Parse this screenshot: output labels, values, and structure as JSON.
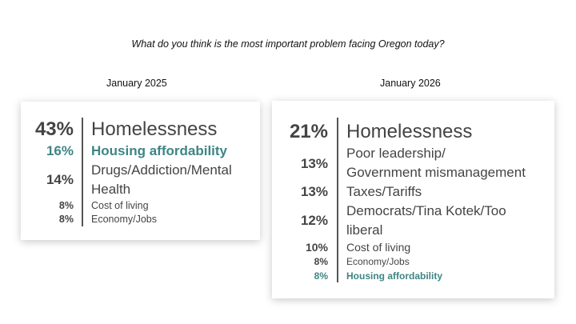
{
  "question": "What do you think is the most important problem facing Oregon today?",
  "panels": [
    {
      "heading": "January 2025",
      "rows": [
        {
          "pct": "43%",
          "label": "Homelessness"
        },
        {
          "pct": "16%",
          "label": "Housing affordability",
          "highlight": true
        },
        {
          "pct": "14%",
          "label_lines": [
            "Drugs/Addiction/Mental",
            "Health"
          ]
        },
        {
          "pct": "8%",
          "label": "Cost of living"
        },
        {
          "pct": "8%",
          "label": "Economy/Jobs"
        }
      ]
    },
    {
      "heading": "January 2026",
      "rows": [
        {
          "pct": "21%",
          "label": "Homelessness"
        },
        {
          "pct": "13%",
          "label_lines": [
            "Poor leadership/",
            "Government mismanagement"
          ]
        },
        {
          "pct": "13%",
          "label": "Taxes/Tariffs"
        },
        {
          "pct": "12%",
          "label_lines": [
            "Democrats/Tina Kotek/Too",
            "liberal"
          ]
        },
        {
          "pct": "10%",
          "label": "Cost of living"
        },
        {
          "pct": "8%",
          "label": "Economy/Jobs"
        },
        {
          "pct": "8%",
          "label": "Housing affordability",
          "highlight": true
        }
      ]
    }
  ],
  "colors": {
    "highlight": "#3e8584",
    "text": "#444444"
  }
}
